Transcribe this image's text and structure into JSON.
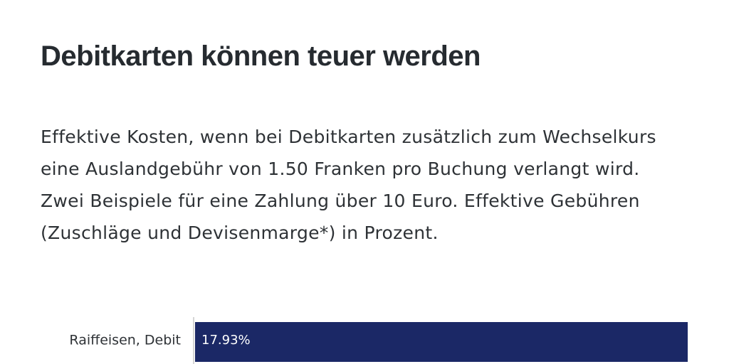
{
  "header": {
    "title": "Debitkarten können teuer werden",
    "subtitle": "Effektive Kosten, wenn bei Debitkarten zusätzlich zum Wechselkurs eine Auslandgebühr von 1.50 Franken pro Buchung verlangt wird. Zwei Beispiele für eine Zahlung über 10 Euro. Effektive Gebühren (Zuschläge und Devisenmarge*) in Prozent."
  },
  "colors": {
    "bar": "#1b2866",
    "axis": "#c8c8c8"
  },
  "chart_data": {
    "type": "bar",
    "orientation": "horizontal",
    "categories": [
      "Raiffeisen, Debit"
    ],
    "values": [
      17.93
    ],
    "value_labels": [
      "17.93%"
    ],
    "xlim": [
      0,
      17.93
    ],
    "grid": false,
    "legend": "none"
  }
}
